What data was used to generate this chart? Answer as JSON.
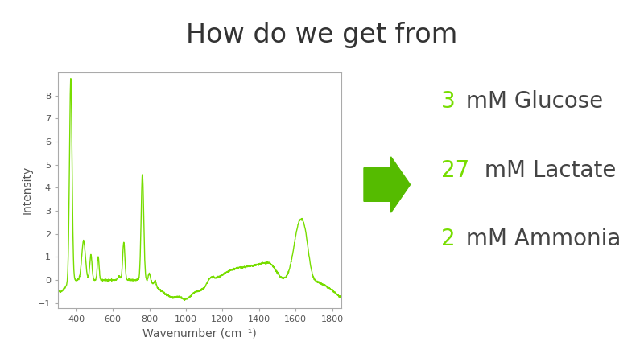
{
  "title": "How do we get from",
  "title_fontsize": 24,
  "title_color": "#333333",
  "background_color": "#ffffff",
  "line_color": "#77dd00",
  "xlabel": "Wavenumber (cm⁻¹)",
  "ylabel": "Intensity",
  "xlim": [
    300,
    1850
  ],
  "ylim": [
    -1.2,
    9.0
  ],
  "yticks": [
    -1,
    0,
    1,
    2,
    3,
    4,
    5,
    6,
    7,
    8
  ],
  "xticks": [
    400,
    600,
    800,
    1000,
    1200,
    1400,
    1600,
    1800
  ],
  "arrow_color": "#55bb00",
  "label_number_color": "#77dd00",
  "label_text_color": "#444444",
  "labels": [
    {
      "number": "3",
      "text": " mM Glucose"
    },
    {
      "number": "27",
      "text": " mM Lactate"
    },
    {
      "number": "2",
      "text": " mM Ammonia"
    }
  ],
  "label_fontsize": 20
}
